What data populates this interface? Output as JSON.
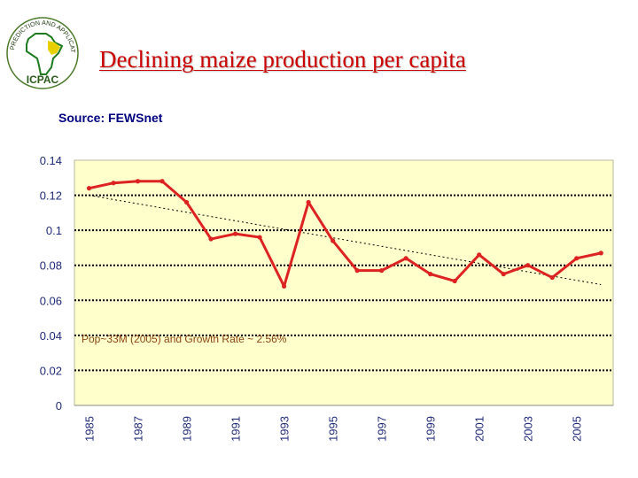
{
  "title": "Declining maize production per capita",
  "source": "Source: FEWSnet",
  "logo": {
    "top_arc_text": "IGAD CLIMATE PREDICTION AND APPLICATIONS CENTRE",
    "acronym": "ICPAC"
  },
  "colors": {
    "title": "#cc0000",
    "source": "#000080",
    "plot_background": "#ffffcc",
    "series": "#dd2222",
    "axis_text": "#1f2b78",
    "annotation": "#8b4513",
    "logo_ring": "#4a7a2a",
    "logo_map": "#1e7a1e",
    "logo_highlight": "#e8d000"
  },
  "chart_data": {
    "type": "line",
    "title": "",
    "xlabel": "",
    "ylabel": "",
    "ylim": [
      0,
      0.14
    ],
    "yticks": [
      0,
      0.02,
      0.04,
      0.06,
      0.08,
      0.1,
      0.12,
      0.14
    ],
    "ytick_labels": [
      "0",
      "0.02",
      "0.04",
      "0.06",
      "0.08",
      "0.1",
      "0.12",
      "0.14"
    ],
    "x": [
      1985,
      1986,
      1987,
      1988,
      1989,
      1990,
      1991,
      1992,
      1993,
      1994,
      1995,
      1996,
      1997,
      1998,
      1999,
      2000,
      2001,
      2002,
      2003,
      2004,
      2005,
      2006
    ],
    "xtick_labels": [
      "1985",
      "1987",
      "1989",
      "1991",
      "1993",
      "1995",
      "1997",
      "1999",
      "2001",
      "2003",
      "2005"
    ],
    "series": [
      {
        "name": "Maize production per capita",
        "values": [
          0.124,
          0.127,
          0.128,
          0.128,
          0.116,
          0.095,
          0.098,
          0.096,
          0.068,
          0.116,
          0.094,
          0.077,
          0.077,
          0.084,
          0.075,
          0.071,
          0.086,
          0.075,
          0.08,
          0.073,
          0.084,
          0.087
        ]
      }
    ],
    "trendline": {
      "style": "dotted",
      "x": [
        1985,
        2006
      ],
      "values": [
        0.12,
        0.069
      ]
    },
    "grid": "horizontal dotted",
    "annotation": "Pop~33M (2005) and Growth Rate ~ 2.56%"
  }
}
